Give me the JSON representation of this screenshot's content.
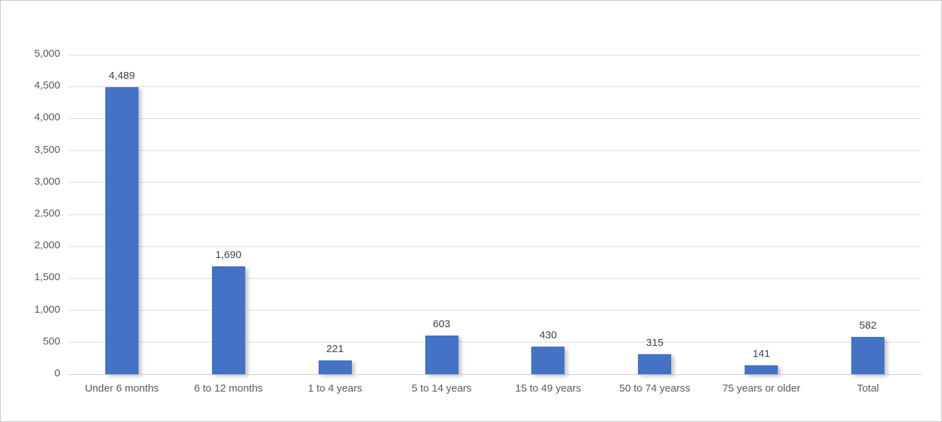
{
  "chart_data": {
    "type": "bar",
    "title": "",
    "xlabel": "",
    "ylabel": "",
    "categories": [
      "Under 6 months",
      "6 to 12 months",
      "1 to 4 years",
      "5 to 14 years",
      "15 to 49 years",
      "50 to 74 yearss",
      "75 years or older",
      "Total"
    ],
    "values": [
      4489,
      1690,
      221,
      603,
      430,
      315,
      141,
      582
    ],
    "data_labels": [
      "4,489",
      "1,690",
      "221",
      "603",
      "430",
      "315",
      "141",
      "582"
    ],
    "ylim": [
      0,
      5000
    ],
    "y_tick_step": 500,
    "y_tick_labels": [
      "0",
      "500",
      "1,000",
      "1,500",
      "2,000",
      "2,500",
      "3,000",
      "3,500",
      "4,000",
      "4,500",
      "5,000"
    ],
    "grid": true,
    "legend": false,
    "colors": {
      "bar": "#4472c4",
      "gridline": "#d9d9d9",
      "axis_line": "#c9c9c9",
      "tick_label": "#595959",
      "data_label": "#404040",
      "frame_border": "#c6c6c6",
      "background": "#ffffff"
    }
  }
}
